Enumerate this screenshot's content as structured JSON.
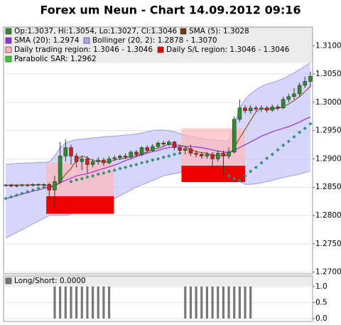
{
  "chart_data": [
    {
      "type": "candlestick",
      "title": "Forex um Neun - Chart 14.09.2012 09:16",
      "xlim": [
        -0.4,
        56.4
      ],
      "ylim": [
        1.2697,
        1.3133
      ],
      "grid": true,
      "yticks": [
        {
          "value": 1.27,
          "label": "1.2700"
        },
        {
          "value": 1.275,
          "label": "1.2750"
        },
        {
          "value": 1.28,
          "label": "1.2800"
        },
        {
          "value": 1.285,
          "label": "1.2850"
        },
        {
          "value": 1.29,
          "label": "1.2900"
        },
        {
          "value": 1.295,
          "label": "1.2950"
        },
        {
          "value": 1.3,
          "label": "1.3000"
        },
        {
          "value": 1.305,
          "label": "1.3050"
        },
        {
          "value": 1.31,
          "label": "1.3100"
        }
      ],
      "up_color": "#2e8b2e",
      "down_color": "#cc2222",
      "open": [
        1.2853,
        1.2854,
        1.2852,
        1.2853,
        1.2854,
        1.2853,
        1.2855,
        1.2854,
        1.2855,
        1.2845,
        1.286,
        1.2905,
        1.292,
        1.2905,
        1.2895,
        1.29,
        1.289,
        1.2895,
        1.2898,
        1.2893,
        1.29,
        1.2902,
        1.2905,
        1.2903,
        1.2912,
        1.2908,
        1.292,
        1.2915,
        1.2922,
        1.2928,
        1.2926,
        1.293,
        1.292,
        1.2915,
        1.2918,
        1.291,
        1.2908,
        1.2905,
        1.2908,
        1.29,
        1.291,
        1.2905,
        1.2912,
        1.297,
        1.299,
        1.2985,
        1.299,
        1.2988,
        1.299,
        1.2986,
        1.2992,
        1.299,
        1.3005,
        1.301,
        1.3015,
        1.303,
        1.3037
      ],
      "close": [
        1.2854,
        1.2852,
        1.2853,
        1.2854,
        1.2853,
        1.2855,
        1.2854,
        1.2855,
        1.2845,
        1.286,
        1.2905,
        1.292,
        1.2905,
        1.2895,
        1.29,
        1.289,
        1.2895,
        1.2898,
        1.2893,
        1.29,
        1.2902,
        1.2905,
        1.2903,
        1.2912,
        1.2908,
        1.292,
        1.2915,
        1.2922,
        1.2928,
        1.2926,
        1.293,
        1.292,
        1.2915,
        1.2918,
        1.291,
        1.2908,
        1.2905,
        1.2908,
        1.29,
        1.291,
        1.2905,
        1.2912,
        1.297,
        1.299,
        1.2985,
        1.299,
        1.2988,
        1.299,
        1.2986,
        1.2992,
        1.299,
        1.3005,
        1.301,
        1.3015,
        1.303,
        1.3037,
        1.3046
      ],
      "high": [
        1.2856,
        1.2856,
        1.2855,
        1.2856,
        1.2856,
        1.2857,
        1.2857,
        1.2857,
        1.2858,
        1.287,
        1.293,
        1.2935,
        1.2925,
        1.291,
        1.2905,
        1.2905,
        1.29,
        1.2903,
        1.2902,
        1.2905,
        1.2906,
        1.2908,
        1.291,
        1.2915,
        1.2916,
        1.2922,
        1.2924,
        1.2926,
        1.2931,
        1.2932,
        1.2933,
        1.2932,
        1.2925,
        1.2922,
        1.2925,
        1.2915,
        1.2912,
        1.2912,
        1.2912,
        1.2915,
        1.2915,
        1.292,
        1.2975,
        1.3005,
        1.2995,
        1.2995,
        1.2994,
        1.2995,
        1.2994,
        1.2996,
        1.2996,
        1.301,
        1.3015,
        1.3025,
        1.3035,
        1.3045,
        1.3054
      ],
      "low": [
        1.2851,
        1.285,
        1.285,
        1.2851,
        1.2851,
        1.2851,
        1.2852,
        1.2852,
        1.283,
        1.2815,
        1.2855,
        1.2895,
        1.289,
        1.2885,
        1.288,
        1.2875,
        1.2885,
        1.289,
        1.2888,
        1.289,
        1.2896,
        1.2898,
        1.29,
        1.29,
        1.2904,
        1.2905,
        1.2912,
        1.2912,
        1.2918,
        1.2922,
        1.2923,
        1.2915,
        1.291,
        1.2908,
        1.2905,
        1.2903,
        1.29,
        1.29,
        1.2885,
        1.2895,
        1.287,
        1.29,
        1.291,
        1.2965,
        1.298,
        1.298,
        1.2984,
        1.2983,
        1.2982,
        1.2983,
        1.2986,
        1.2988,
        1.3,
        1.3005,
        1.301,
        1.3025,
        1.3027
      ],
      "band": {
        "color": "#c8c8f8",
        "stroke": "#9c9ce8",
        "upper": [
          1.289,
          1.2891,
          1.2892,
          1.2892,
          1.2893,
          1.2893,
          1.2894,
          1.2894,
          1.2895,
          1.2905,
          1.292,
          1.2928,
          1.2932,
          1.2934,
          1.2935,
          1.2936,
          1.2937,
          1.2938,
          1.2939,
          1.294,
          1.294,
          1.2941,
          1.2942,
          1.2943,
          1.2944,
          1.2946,
          1.2948,
          1.295,
          1.2951,
          1.2951,
          1.295,
          1.2948,
          1.2945,
          1.2942,
          1.294,
          1.2938,
          1.2936,
          1.2935,
          1.2934,
          1.2933,
          1.2932,
          1.2932,
          1.296,
          1.299,
          1.3005,
          1.3015,
          1.3022,
          1.3028,
          1.3032,
          1.3035,
          1.3038,
          1.3042,
          1.3047,
          1.3052,
          1.3058,
          1.3064,
          1.307
        ],
        "lower": [
          1.276,
          1.2765,
          1.277,
          1.2775,
          1.278,
          1.2785,
          1.279,
          1.2795,
          1.28,
          1.28,
          1.28,
          1.28,
          1.2802,
          1.2806,
          1.281,
          1.2813,
          1.2817,
          1.282,
          1.2823,
          1.2826,
          1.283,
          1.2835,
          1.284,
          1.2845,
          1.285,
          1.2854,
          1.2858,
          1.2862,
          1.2866,
          1.287,
          1.2872,
          1.2874,
          1.2876,
          1.2878,
          1.288,
          1.2882,
          1.2884,
          1.2886,
          1.2887,
          1.2888,
          1.2889,
          1.2889,
          1.287,
          1.286,
          1.2855,
          1.2855,
          1.2856,
          1.2858,
          1.286,
          1.2862,
          1.2865,
          1.2867,
          1.2869,
          1.2871,
          1.2873,
          1.2876,
          1.2878
        ]
      },
      "regions": [
        {
          "x": [
            7.45,
            19.9
          ],
          "trading": [
            1.2834,
            1.2893
          ],
          "stop": [
            1.2803,
            1.2834
          ]
        },
        {
          "x": [
            32.3,
            44
          ],
          "trading": [
            1.2888,
            1.2954
          ],
          "stop": [
            1.2859,
            1.2888
          ]
        }
      ],
      "trading_color": "#ffb8b8",
      "stop_color": "#ee0000",
      "series": [
        {
          "style": "line",
          "color": "#9b30d9",
          "values": [
            1.283,
            1.2832,
            1.2835,
            1.2838,
            1.284,
            1.2843,
            1.2845,
            1.2848,
            1.285,
            1.2852,
            1.2858,
            1.2862,
            1.2866,
            1.287,
            1.2872,
            1.2874,
            1.2877,
            1.288,
            1.2883,
            1.2886,
            1.2889,
            1.2893,
            1.2897,
            1.29,
            1.2904,
            1.2907,
            1.291,
            1.2913,
            1.2915,
            1.2918,
            1.292,
            1.2921,
            1.2922,
            1.2922,
            1.2922,
            1.2921,
            1.292,
            1.2918,
            1.2916,
            1.2914,
            1.2912,
            1.2912,
            1.2915,
            1.292,
            1.2925,
            1.293,
            1.2935,
            1.294,
            1.2944,
            1.2948,
            1.2951,
            1.2954,
            1.2957,
            1.2961,
            1.2965,
            1.297,
            1.2974
          ]
        },
        {
          "style": "line",
          "color": "#8b5a2b",
          "values": [
            1.2853,
            1.2854,
            1.2854,
            1.2854,
            1.2854,
            1.2854,
            1.2854,
            1.2854,
            1.2852,
            1.2852,
            1.286,
            1.2873,
            1.2883,
            1.2898,
            1.2905,
            1.2902,
            1.2897,
            1.2896,
            1.2895,
            1.2895,
            1.2898,
            1.29,
            1.2901,
            1.2904,
            1.2906,
            1.291,
            1.2912,
            1.2917,
            1.2919,
            1.2922,
            1.2926,
            1.2925,
            1.2924,
            1.2922,
            1.2916,
            1.2913,
            1.2911,
            1.291,
            1.2906,
            1.2906,
            1.2906,
            1.2907,
            1.292,
            1.2937,
            1.2952,
            1.2968,
            1.2983,
            1.2989,
            1.2988,
            1.2989,
            1.2989,
            1.2992,
            1.2997,
            1.3003,
            1.301,
            1.3019,
            1.3028
          ]
        },
        {
          "style": "dots",
          "color": "#2a9a7a",
          "values": [
            1.283,
            1.2833,
            1.2836,
            1.2839,
            1.2842,
            1.2845,
            1.2848,
            1.285,
            null,
            null,
            null,
            null,
            1.286,
            1.2863,
            1.2865,
            1.2868,
            1.287,
            1.2873,
            1.2875,
            1.2878,
            1.288,
            1.2883,
            1.2885,
            1.2888,
            1.289,
            1.2893,
            1.2895,
            1.2898,
            1.29,
            1.2903,
            1.2905,
            1.2908,
            1.291,
            null,
            null,
            null,
            null,
            null,
            null,
            null,
            null,
            1.287,
            1.2865,
            1.2862,
            1.287,
            1.2878,
            1.2885,
            1.2893,
            1.2901,
            1.2908,
            1.2916,
            1.2924,
            1.2931,
            1.2939,
            1.2947,
            1.2954,
            1.2962
          ]
        }
      ],
      "legend": [
        {
          "label": "Op:1.3037, Hi:1.3054, Lo:1.3027, Cl:1.3046",
          "color": "#2e8b2e"
        },
        {
          "label": "SMA (5): 1.3028",
          "color": "#6b3a1b"
        },
        {
          "label": "SMA (20): 1.2974",
          "color": "#9b30d9"
        },
        {
          "label": "Bollinger (20, 2): 1.2878 - 1.3070",
          "color": "#a8a8f0"
        },
        {
          "label": "Daily trading region: 1.3046 - 1.3046",
          "color": "#ffb8b8"
        },
        {
          "label": "Daily S/L region: 1.3046 - 1.3046",
          "color": "#ee0000"
        },
        {
          "label": "Parabolic SAR: 1.2962",
          "color": "#33cc33"
        }
      ]
    },
    {
      "type": "bar",
      "label": "Long/Short: 0.0000",
      "color": "#777777",
      "ylim": [
        -0.09,
        1.33
      ],
      "yticks": [
        {
          "value": 0,
          "label": "0.0"
        },
        {
          "value": 0.5,
          "label": "0.5"
        },
        {
          "value": 1,
          "label": "1.0"
        }
      ],
      "values": [
        0,
        0,
        0,
        0,
        0,
        0,
        0,
        0,
        0,
        1,
        1,
        1,
        1,
        1,
        1,
        1,
        1,
        1,
        1,
        1,
        0,
        0,
        0,
        0,
        0,
        0,
        0,
        0,
        0,
        0,
        0,
        0,
        0,
        1,
        1,
        1,
        1,
        1,
        1,
        1,
        1,
        1,
        1,
        1,
        1,
        1,
        0,
        0,
        0,
        0,
        0,
        0,
        0,
        0,
        0,
        0,
        0
      ]
    }
  ]
}
